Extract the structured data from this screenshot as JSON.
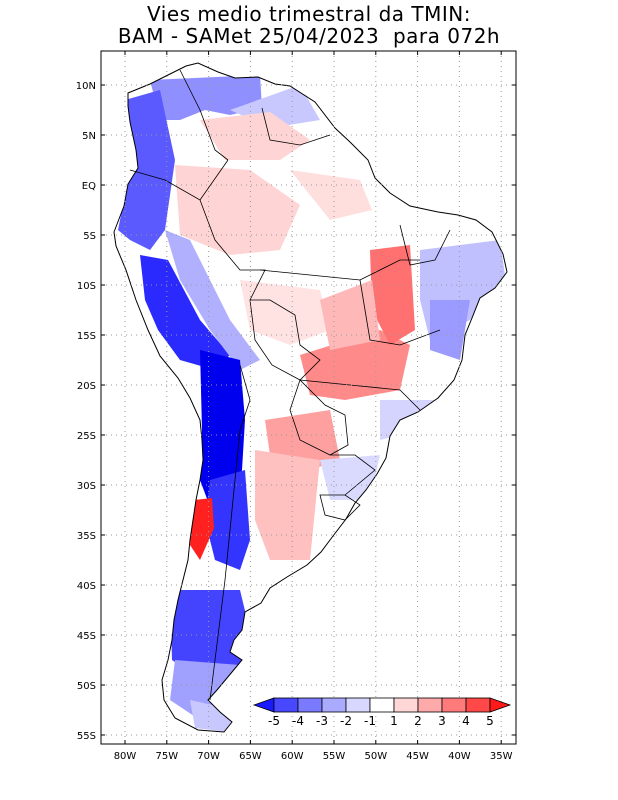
{
  "title": {
    "line1": "Vies medio trimestral da TMIN:",
    "line2": "BAM - SAMet 25/04/2023  para 072h"
  },
  "lat_labels": [
    "10N",
    "5N",
    "EQ",
    "5S",
    "10S",
    "15S",
    "20S",
    "25S",
    "30S",
    "35S",
    "40S",
    "45S",
    "50S",
    "55S"
  ],
  "lon_labels": [
    "80W",
    "75W",
    "70W",
    "65W",
    "60W",
    "55W",
    "50W",
    "45W",
    "40W",
    "35W"
  ],
  "colorbar": {
    "labels": [
      "-5",
      "-4",
      "-3",
      "-2",
      "-1",
      "1",
      "2",
      "3",
      "4",
      "5"
    ],
    "colors": [
      "#1a1aff",
      "#4848ff",
      "#7a7aff",
      "#aaaaff",
      "#d7d7ff",
      "#ffffff",
      "#ffd7d7",
      "#ffaaaa",
      "#ff7a7a",
      "#ff4848",
      "#ff1a1a"
    ]
  },
  "colors": {
    "deep_blue": "#0000ee",
    "blue": "#3a3aff",
    "light_blue": "#b8b8ff",
    "pale_red": "#ffd4d4",
    "red": "#ff8a8a",
    "bright_red": "#ff2020",
    "gridline": "#999999"
  }
}
